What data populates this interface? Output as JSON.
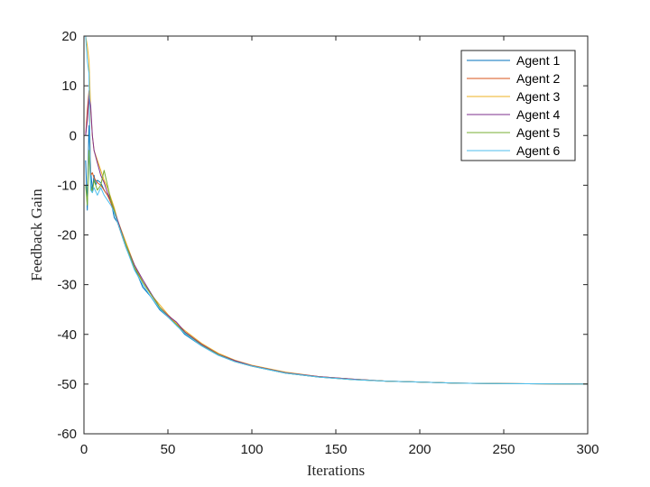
{
  "chart_data": {
    "type": "line",
    "xlabel": "Iterations",
    "ylabel": "Feedback Gain",
    "xlim": [
      0,
      300
    ],
    "ylim": [
      -60,
      20
    ],
    "xticks": [
      0,
      50,
      100,
      150,
      200,
      250,
      300
    ],
    "yticks": [
      -60,
      -50,
      -40,
      -30,
      -20,
      -10,
      0,
      10,
      20
    ],
    "xtick_labels": [
      "0",
      "50",
      "100",
      "150",
      "200",
      "250",
      "300"
    ],
    "ytick_labels": [
      "-60",
      "-50",
      "-40",
      "-30",
      "-20",
      "-10",
      "0",
      "10",
      "20"
    ],
    "grid": false,
    "legend_position": "top-right",
    "series": [
      {
        "name": "Agent 1",
        "color": "#0072BD",
        "x": [
          1,
          2,
          3,
          4,
          5,
          6,
          7,
          8,
          10,
          12,
          14,
          16,
          18,
          20,
          25,
          30,
          35,
          40,
          45,
          50,
          55,
          60,
          70,
          80,
          90,
          100,
          120,
          140,
          160,
          180,
          200,
          220,
          250,
          300
        ],
        "y": [
          -5,
          -15,
          2,
          -7,
          -11,
          -8,
          -10,
          -9,
          -9.5,
          -11,
          -12,
          -13,
          -16.5,
          -17.5,
          -22.5,
          -26.5,
          -30.5,
          -32.5,
          -35,
          -36.5,
          -38,
          -40,
          -42.3,
          -44.2,
          -45.5,
          -46.4,
          -47.8,
          -48.6,
          -49.1,
          -49.4,
          -49.6,
          -49.8,
          -49.9,
          -50
        ]
      },
      {
        "name": "Agent 2",
        "color": "#D95319",
        "x": [
          1,
          2,
          3,
          4,
          5,
          6,
          8,
          10,
          12,
          14,
          16,
          18,
          20,
          25,
          30,
          35,
          40,
          45,
          50,
          55,
          60,
          70,
          80,
          90,
          100,
          120,
          140,
          160,
          180,
          200,
          220,
          250,
          300
        ],
        "y": [
          0,
          5,
          9,
          -8,
          -7.5,
          -8.5,
          -9.5,
          -10,
          -11,
          -12,
          -13.5,
          -15.5,
          -17.5,
          -22.5,
          -26.5,
          -29.5,
          -32,
          -34.5,
          -36.2,
          -37.8,
          -39.5,
          -42,
          -44,
          -45.4,
          -46.3,
          -47.7,
          -48.5,
          -49,
          -49.4,
          -49.6,
          -49.8,
          -49.9,
          -50
        ]
      },
      {
        "name": "Agent 3",
        "color": "#EDB120",
        "x": [
          1,
          2,
          3,
          4,
          5,
          6,
          8,
          10,
          12,
          14,
          16,
          18,
          20,
          25,
          30,
          35,
          40,
          45,
          50,
          55,
          60,
          70,
          80,
          90,
          100,
          120,
          140,
          160,
          180,
          200,
          220,
          250,
          300
        ],
        "y": [
          20,
          18,
          15,
          5,
          0,
          -3,
          -5,
          -7,
          -9,
          -10.5,
          -12.5,
          -14.5,
          -17,
          -21.5,
          -26,
          -29.5,
          -32,
          -34,
          -36,
          -37.8,
          -39.2,
          -41.8,
          -43.8,
          -45.2,
          -46.2,
          -47.6,
          -48.5,
          -49,
          -49.4,
          -49.6,
          -49.8,
          -49.9,
          -50
        ]
      },
      {
        "name": "Agent 4",
        "color": "#7E2F8E",
        "x": [
          1,
          2,
          3,
          4,
          5,
          6,
          8,
          10,
          12,
          14,
          16,
          18,
          20,
          25,
          30,
          35,
          40,
          45,
          50,
          55,
          60,
          70,
          80,
          90,
          100,
          120,
          140,
          160,
          180,
          200,
          220,
          250,
          300
        ],
        "y": [
          0,
          3,
          8,
          6,
          0,
          -3,
          -5.5,
          -8,
          -9.5,
          -11.5,
          -13,
          -15,
          -17,
          -22,
          -26,
          -29,
          -31.8,
          -34.5,
          -36.2,
          -37.5,
          -39.5,
          -42,
          -44,
          -45.3,
          -46.3,
          -47.7,
          -48.5,
          -49,
          -49.4,
          -49.6,
          -49.8,
          -49.9,
          -50
        ]
      },
      {
        "name": "Agent 5",
        "color": "#77AC30",
        "x": [
          1,
          2,
          3,
          4,
          5,
          6,
          8,
          10,
          12,
          14,
          16,
          18,
          20,
          25,
          30,
          35,
          40,
          45,
          50,
          55,
          60,
          70,
          80,
          90,
          100,
          120,
          140,
          160,
          180,
          200,
          220,
          250,
          300
        ],
        "y": [
          -10,
          -14,
          -3,
          -10,
          -11.5,
          -9,
          -11,
          -10,
          -7,
          -10,
          -13,
          -15,
          -17.5,
          -22,
          -26.5,
          -29.5,
          -32,
          -34.5,
          -36.5,
          -38,
          -39.7,
          -42.2,
          -44.1,
          -45.5,
          -46.4,
          -47.8,
          -48.6,
          -49.1,
          -49.4,
          -49.6,
          -49.8,
          -49.9,
          -50
        ]
      },
      {
        "name": "Agent 6",
        "color": "#4DBEEE",
        "x": [
          1,
          2,
          3,
          4,
          5,
          6,
          8,
          10,
          12,
          14,
          16,
          18,
          20,
          25,
          30,
          35,
          40,
          45,
          50,
          55,
          60,
          70,
          80,
          90,
          100,
          120,
          140,
          160,
          180,
          200,
          220,
          250,
          300
        ],
        "y": [
          20,
          15,
          12.5,
          -11,
          -11.5,
          -10.5,
          -12,
          -10.5,
          -12,
          -13,
          -14,
          -15.5,
          -17.5,
          -22.5,
          -27,
          -30,
          -32.5,
          -34.8,
          -36.5,
          -38.2,
          -39.8,
          -42.3,
          -44.2,
          -45.5,
          -46.4,
          -47.8,
          -48.6,
          -49.1,
          -49.4,
          -49.6,
          -49.8,
          -49.9,
          -50
        ]
      }
    ]
  }
}
